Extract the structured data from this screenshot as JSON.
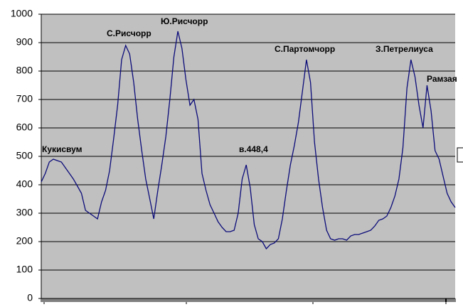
{
  "chart_data": {
    "type": "line",
    "annotations": [
      "Кукисвум",
      "С.Рисчорр",
      "Ю.Рисчорр",
      "в.448,4",
      "С.Партомчорр",
      "З.Петрелиуса",
      "Рамзая"
    ],
    "series": [
      {
        "color": "#0b0b7a",
        "values": [
          410,
          440,
          480,
          490,
          485,
          480,
          460,
          440,
          420,
          395,
          370,
          310,
          300,
          290,
          280,
          340,
          380,
          450,
          560,
          680,
          840,
          890,
          860,
          760,
          630,
          520,
          420,
          350,
          280,
          380,
          470,
          570,
          700,
          850,
          940,
          880,
          770,
          680,
          700,
          630,
          440,
          380,
          330,
          300,
          270,
          250,
          235,
          235,
          240,
          300,
          420,
          470,
          390,
          260,
          210,
          200,
          175,
          190,
          195,
          210,
          280,
          380,
          470,
          540,
          620,
          730,
          840,
          760,
          550,
          420,
          320,
          240,
          210,
          205,
          210,
          210,
          205,
          220,
          225,
          225,
          230,
          235,
          240,
          255,
          275,
          280,
          290,
          320,
          360,
          420,
          530,
          740,
          840,
          780,
          680,
          600,
          750,
          660,
          520,
          490,
          430,
          370,
          340,
          320
        ]
      }
    ],
    "ylim": [
      0,
      1000
    ],
    "yticks": [
      0,
      100,
      200,
      300,
      400,
      500,
      600,
      700,
      800,
      900,
      1000
    ],
    "grid": true
  }
}
